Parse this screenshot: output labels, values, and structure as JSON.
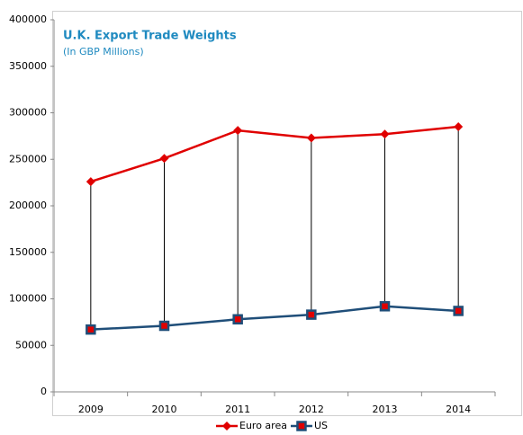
{
  "chart_data": {
    "type": "line",
    "title": "U.K. Export Trade Weights",
    "subtitle": "(In GBP Millions)",
    "categories": [
      "2009",
      "2010",
      "2011",
      "2012",
      "2013",
      "2014"
    ],
    "series": [
      {
        "name": "Euro area",
        "color": "#e00000",
        "marker": "diamond",
        "values": [
          226000,
          251000,
          281000,
          273000,
          277000,
          285000
        ]
      },
      {
        "name": "US",
        "color": "#1f4e79",
        "marker": "square",
        "values": [
          67000,
          71000,
          78000,
          83000,
          92000,
          87000
        ]
      }
    ],
    "ylim": [
      0,
      400000
    ],
    "yticks": [
      0,
      50000,
      100000,
      150000,
      200000,
      250000,
      300000,
      350000,
      400000
    ],
    "grid": false,
    "high_low_lines": true,
    "legend": "bottom"
  }
}
